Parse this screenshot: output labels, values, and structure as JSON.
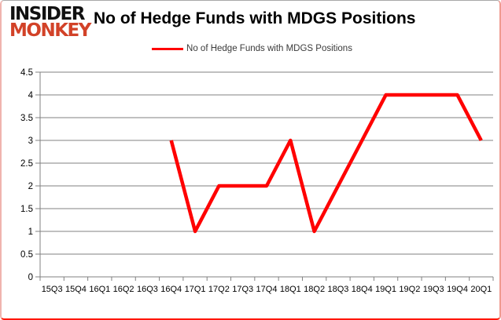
{
  "branding": {
    "logo_line1": "INSIDER",
    "logo_line2": "MONKEY",
    "logo_accent_color": "#d24228"
  },
  "header": {
    "title": "No of Hedge Funds with MDGS Positions"
  },
  "legend": {
    "label": "No of Hedge Funds with MDGS Positions",
    "line_color": "#ff0000"
  },
  "chart_data": {
    "type": "line",
    "title": "No of Hedge Funds with MDGS Positions",
    "categories": [
      "15Q3",
      "15Q4",
      "16Q1",
      "16Q2",
      "16Q3",
      "16Q4",
      "17Q1",
      "17Q2",
      "17Q3",
      "17Q4",
      "18Q1",
      "18Q2",
      "18Q3",
      "18Q4",
      "19Q1",
      "19Q2",
      "19Q3",
      "19Q4",
      "20Q1"
    ],
    "series": [
      {
        "name": "No of Hedge Funds with MDGS Positions",
        "color": "#ff0000",
        "values": [
          null,
          null,
          null,
          null,
          null,
          3,
          1,
          2,
          2,
          2,
          3,
          1,
          2,
          3,
          4,
          4,
          4,
          4,
          3
        ]
      }
    ],
    "ylim": [
      0,
      4.5
    ],
    "ytick_step": 0.5,
    "ytick_labels": [
      "0",
      "0.5",
      "1",
      "1.5",
      "2",
      "2.5",
      "3",
      "3.5",
      "4",
      "4.5"
    ],
    "grid": "horizontal",
    "grid_color": "#808080",
    "legend_position": "top",
    "xlabel": "",
    "ylabel": ""
  }
}
